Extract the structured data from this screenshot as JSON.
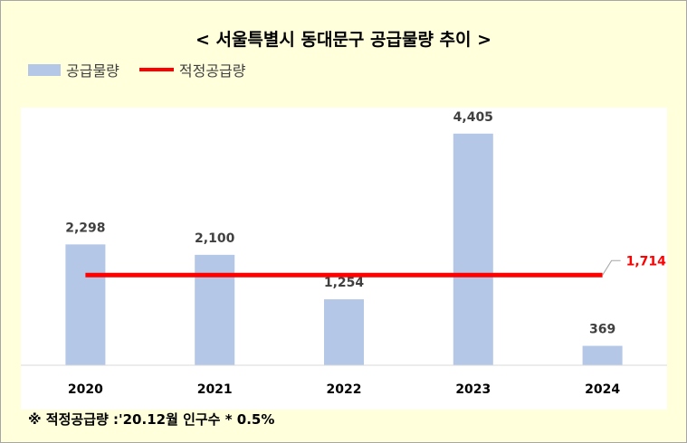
{
  "title": "< 서울특별시 동대문구 공급물량 추이 >",
  "legend": {
    "bar_label": "공급물량",
    "line_label": "적정공급량"
  },
  "footnote": "※ 적정공급량 :'20.12월 인구수 * 0.5%",
  "colors": {
    "bar": "#B4C7E7",
    "line": "#FF0000",
    "background": "#FFFFDB",
    "plot_background": "#FFFFFF"
  },
  "chart_data": {
    "type": "bar",
    "categories": [
      "2020",
      "2021",
      "2022",
      "2023",
      "2024"
    ],
    "series": [
      {
        "name": "공급물량",
        "type": "bar",
        "values": [
          2298,
          2100,
          1254,
          4405,
          369
        ],
        "labels": [
          "2,298",
          "2,100",
          "1,254",
          "4,405",
          "369"
        ]
      },
      {
        "name": "적정공급량",
        "type": "line",
        "values": [
          1714,
          1714,
          1714,
          1714,
          1714
        ],
        "end_label": "1,714"
      }
    ],
    "ylim": [
      0,
      4900
    ],
    "grid": false,
    "legend_position": "top-left"
  }
}
